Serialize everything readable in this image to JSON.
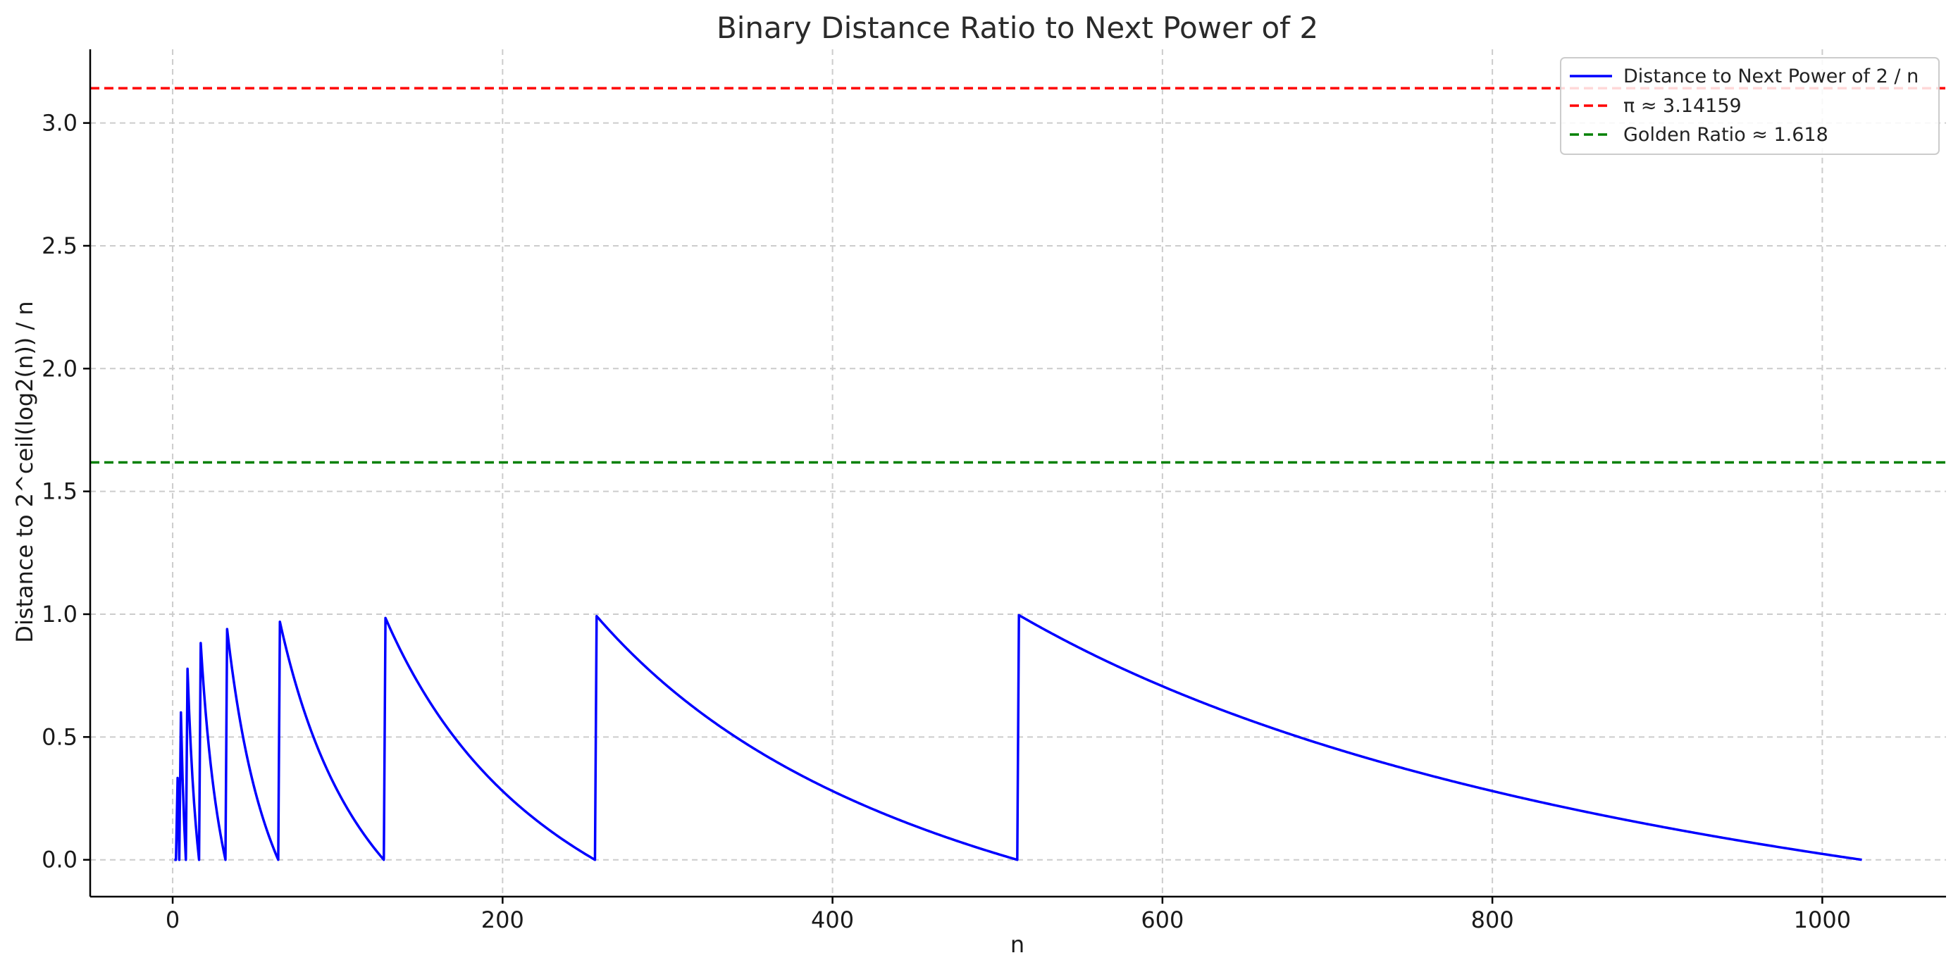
{
  "chart_data": {
    "type": "line",
    "title": "Binary Distance Ratio to Next Power of 2",
    "xlabel": "n",
    "ylabel": "Distance to 2^ceil(log2(n)) / n",
    "xlim": [
      -50,
      1075
    ],
    "ylim": [
      -0.15,
      3.3
    ],
    "xticks": [
      0,
      200,
      400,
      600,
      800,
      1000
    ],
    "xtick_labels": [
      "0",
      "200",
      "400",
      "600",
      "800",
      "1000"
    ],
    "yticks": [
      0.0,
      0.5,
      1.0,
      1.5,
      2.0,
      2.5,
      3.0
    ],
    "ytick_labels": [
      "0.0",
      "0.5",
      "1.0",
      "1.5",
      "2.0",
      "2.5",
      "3.0"
    ],
    "grid": true,
    "legend_position": "top-right",
    "series": [
      {
        "name": "Distance to Next Power of 2 / n",
        "kind": "line",
        "style": "solid",
        "color": "#0000ff",
        "x_range": [
          1,
          1024
        ],
        "formula": "(2^ceil(log2(n)) - n) / n"
      },
      {
        "name": "π ≈ 3.14159",
        "kind": "hline",
        "style": "dashed",
        "color": "#ff0000",
        "y": 3.14159
      },
      {
        "name": "Golden Ratio ≈ 1.618",
        "kind": "hline",
        "style": "dashed",
        "color": "#008000",
        "y": 1.618
      }
    ]
  }
}
